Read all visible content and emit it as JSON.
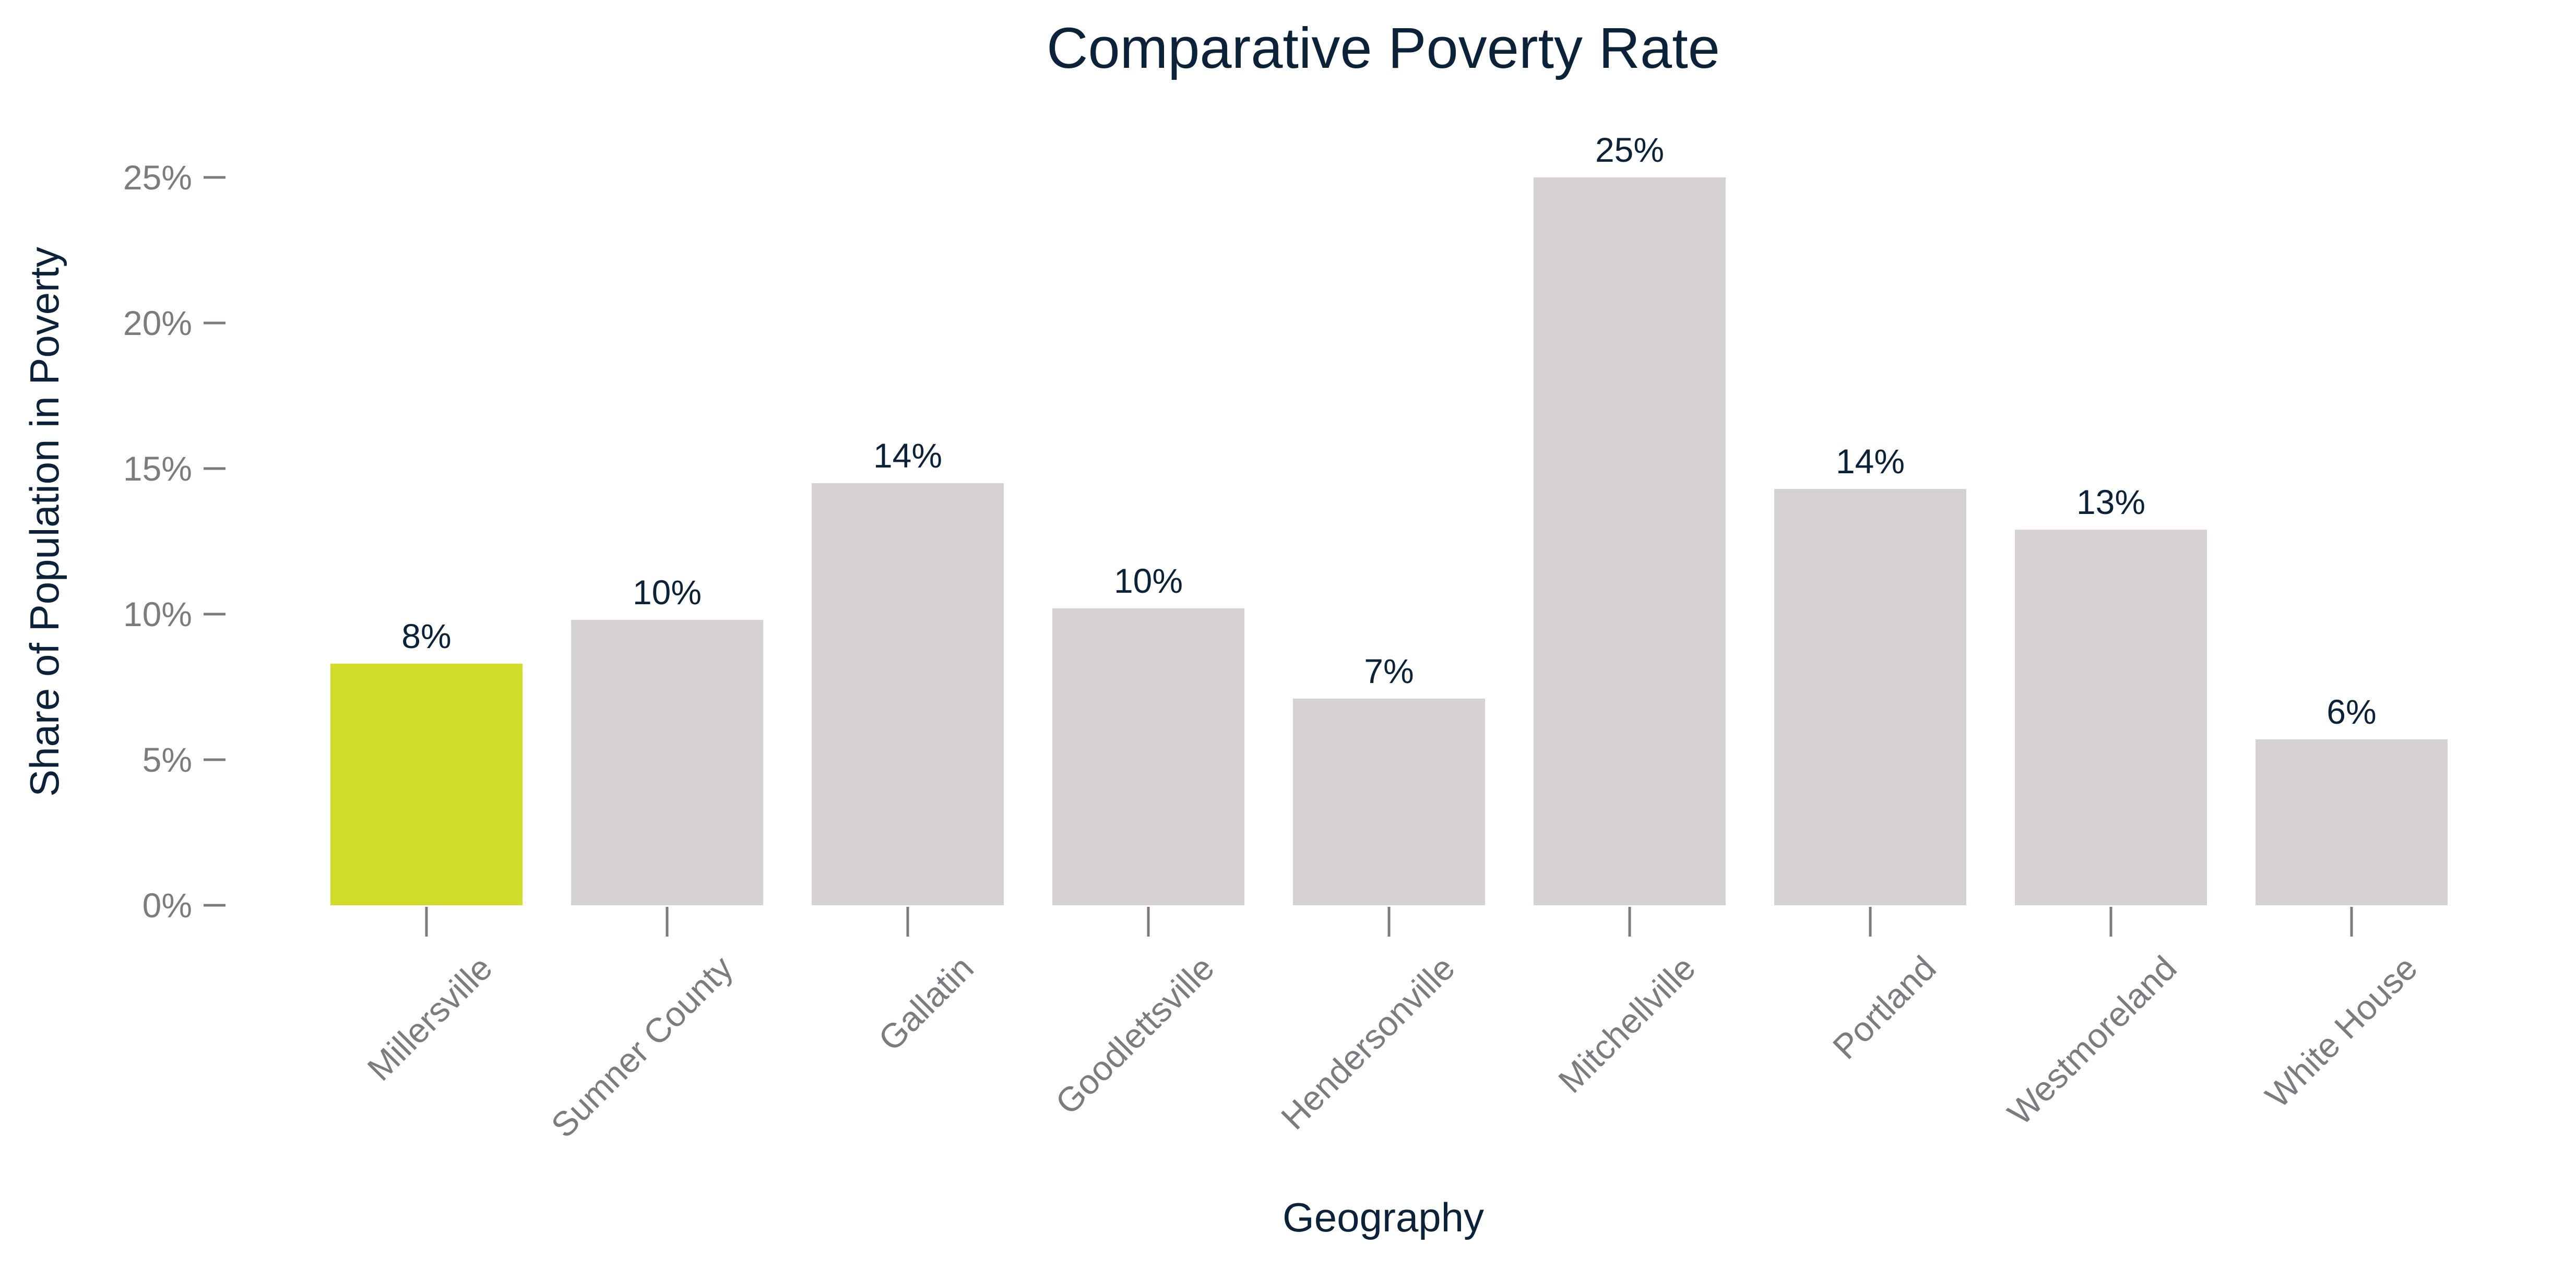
{
  "chart_data": {
    "type": "bar",
    "title": "Comparative Poverty Rate",
    "xlabel": "Geography",
    "ylabel": "Share of Population in Poverty",
    "categories": [
      "Millersville",
      "Sumner County",
      "Gallatin",
      "Goodlettsville",
      "Hendersonville",
      "Mitchellville",
      "Portland",
      "Westmoreland",
      "White House"
    ],
    "values": [
      8.3,
      9.8,
      14.5,
      10.2,
      7.1,
      25.0,
      14.3,
      12.9,
      5.7
    ],
    "data_labels": [
      "8%",
      "10%",
      "14%",
      "10%",
      "7%",
      "25%",
      "14%",
      "13%",
      "6%"
    ],
    "highlight_index": 0,
    "ylim": [
      0,
      25
    ],
    "yticks": [
      0,
      5,
      10,
      15,
      20,
      25
    ],
    "ytick_labels": [
      "0%",
      "5%",
      "10%",
      "15%",
      "20%",
      "25%"
    ],
    "grid": false,
    "legend": "none",
    "colors": {
      "highlight": "#cfdd28",
      "bar": "#d6d1d3",
      "text": "#0b2239",
      "axis": "#7d7a80"
    }
  }
}
